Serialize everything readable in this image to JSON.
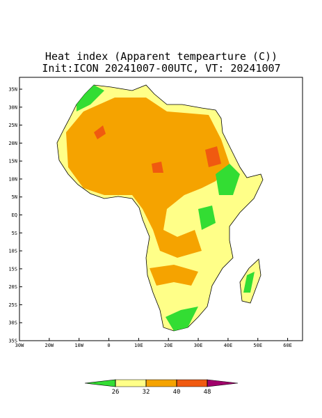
{
  "map": {
    "title": "Heat index (Apparent tempearture (C))",
    "subtitle": "Init:ICON 20241007-00UTC, VT: 20241007",
    "xlim": [
      -30,
      65
    ],
    "ylim": [
      -35,
      38.3
    ],
    "xticks": [
      {
        "value": -30,
        "label": "30W"
      },
      {
        "value": -20,
        "label": "20W"
      },
      {
        "value": -10,
        "label": "10W"
      },
      0,
      {
        "value": 10,
        "label": "10E"
      },
      {
        "value": 20,
        "label": "20E"
      },
      {
        "value": 30,
        "label": "30E"
      },
      {
        "value": 40,
        "label": "40E"
      },
      {
        "value": 50,
        "label": "50E"
      },
      {
        "value": 60,
        "label": "60E"
      }
    ],
    "yticks": [
      {
        "value": 35,
        "label": "35N"
      },
      {
        "value": 30,
        "label": "30N"
      },
      {
        "value": 25,
        "label": "25N"
      },
      {
        "value": 20,
        "label": "20N"
      },
      {
        "value": 15,
        "label": "15N"
      },
      {
        "value": 10,
        "label": "10N"
      },
      {
        "value": 5,
        "label": "5N"
      },
      {
        "value": 0,
        "label": "EQ"
      },
      {
        "value": -5,
        "label": "5S"
      },
      {
        "value": -10,
        "label": "10S"
      },
      {
        "value": -15,
        "label": "15S"
      },
      {
        "value": -20,
        "label": "20S"
      },
      {
        "value": -25,
        "label": "25S"
      },
      {
        "value": -30,
        "label": "30S"
      },
      {
        "value": -35,
        "label": "35S"
      }
    ],
    "colorbar": {
      "levels": [
        26,
        32,
        40,
        48
      ],
      "colors": [
        "#33dd33",
        "#ffff88",
        "#f5a300",
        "#f05a10",
        "#a0006a"
      ]
    }
  }
}
